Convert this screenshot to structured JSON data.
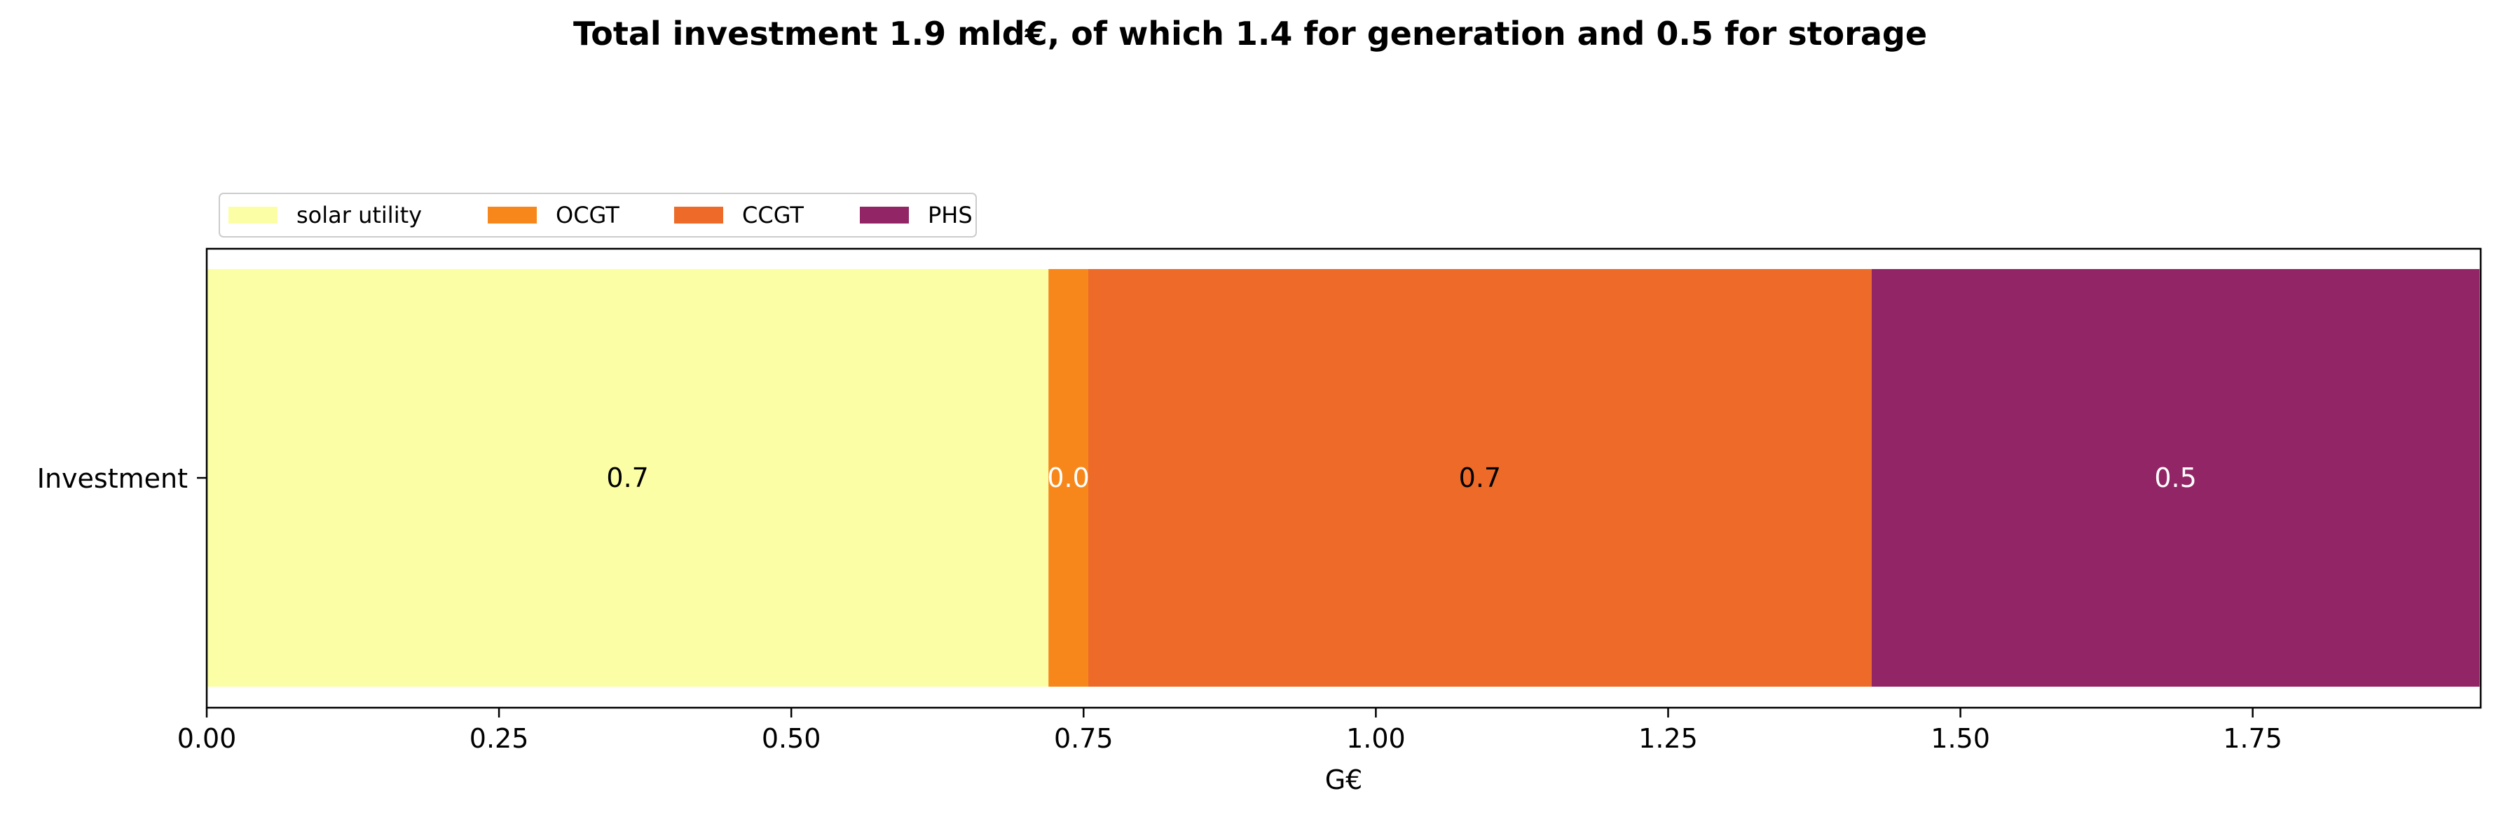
{
  "chart_data": {
    "type": "bar",
    "orientation": "horizontal",
    "stacked": true,
    "title": "Total investment 1.9 mld€, of which 1.4 for generation and 0.5 for storage",
    "xlabel": "G€",
    "ylabel": "",
    "categories": [
      "Investment"
    ],
    "xlim": [
      0.0,
      1.945
    ],
    "xticks": [
      0.0,
      0.25,
      0.5,
      0.75,
      1.0,
      1.25,
      1.5,
      1.75
    ],
    "xtick_labels": [
      "0.00",
      "0.25",
      "0.50",
      "0.75",
      "1.00",
      "1.25",
      "1.50",
      "1.75"
    ],
    "grid": false,
    "legend_position": "top-left",
    "legend_columns": 4,
    "series": [
      {
        "name": "solar utility",
        "values": [
          0.72
        ],
        "label": "0.7",
        "color": "#fbfea5",
        "label_color": "#000000"
      },
      {
        "name": "OCGT",
        "values": [
          0.034
        ],
        "label": "0.0",
        "color": "#f7871a",
        "label_color": "#ffffff"
      },
      {
        "name": "CCGT",
        "values": [
          0.67
        ],
        "label": "0.7",
        "color": "#ed6a28",
        "label_color": "#000000"
      },
      {
        "name": "PHS",
        "values": [
          0.52
        ],
        "label": "0.5",
        "color": "#922566",
        "label_color": "#ffffff"
      }
    ]
  }
}
